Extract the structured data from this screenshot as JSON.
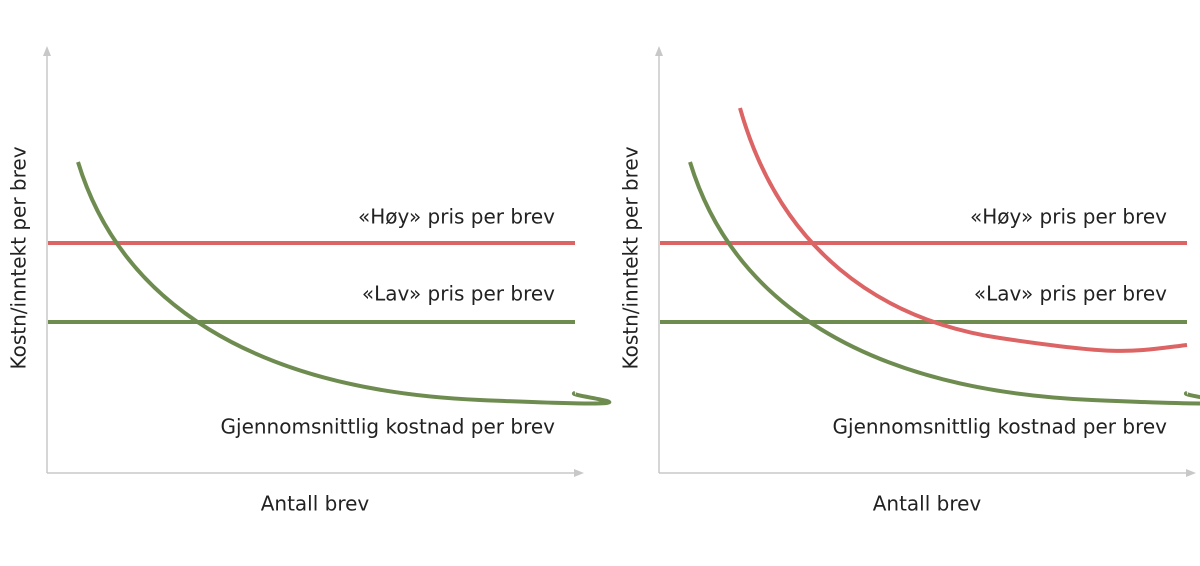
{
  "panels": [
    {
      "y_axis_label": "Kostn/inntekt per brev",
      "x_axis_label": "Antall brev",
      "line_labels": [
        "«Høy» pris per brev",
        "«Lav» pris per brev",
        "Gjennomsnittlig kostnad per brev"
      ]
    },
    {
      "y_axis_label": "Kostn/inntekt per brev",
      "x_axis_label": "Antall brev",
      "line_labels": [
        "«Høy» pris per brev",
        "«Lav» pris per brev",
        "Gjennomsnittlig kostnad per brev"
      ]
    }
  ]
}
